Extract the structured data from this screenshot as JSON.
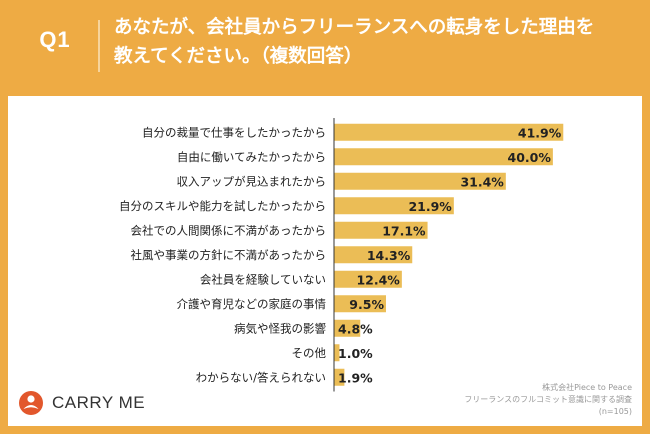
{
  "header": {
    "question_number": "Q1",
    "question_line1": "あなたが、会社員からフリーランスへの転身をした理由を",
    "question_line2": "教えてください。（複数回答）"
  },
  "chart_data": {
    "type": "bar",
    "orientation": "horizontal",
    "title": "あなたが、会社員からフリーランスへの転身をした理由を教えてください。（複数回答）",
    "categories": [
      "自分の裁量で仕事をしたかったから",
      "自由に働いてみたかったから",
      "収入アップが見込まれたから",
      "自分のスキルや能力を試したかったから",
      "会社での人間関係に不満があったから",
      "社風や事業の方針に不満があったから",
      "会社員を経験していない",
      "介護や育児などの家庭の事情",
      "病気や怪我の影響",
      "その他",
      "わからない/答えられない"
    ],
    "values": [
      41.9,
      40.0,
      31.4,
      21.9,
      17.1,
      14.3,
      12.4,
      9.5,
      4.8,
      1.0,
      1.9
    ],
    "value_labels": [
      "41.9%",
      "40.0%",
      "31.4%",
      "21.9%",
      "17.1%",
      "14.3%",
      "12.4%",
      "9.5%",
      "4.8%",
      "1.0%",
      "1.9%"
    ],
    "unit": "%",
    "xlim": [
      0,
      50
    ],
    "bar_color": "#ebbd56"
  },
  "source": {
    "line1": "株式会社Piece to Peace",
    "line2": "フリーランスのフルコミット意識に関する調査",
    "line3": "(n=105)"
  },
  "logo": {
    "text": "CARRY ME",
    "icon": "carry-me-logo-icon"
  }
}
